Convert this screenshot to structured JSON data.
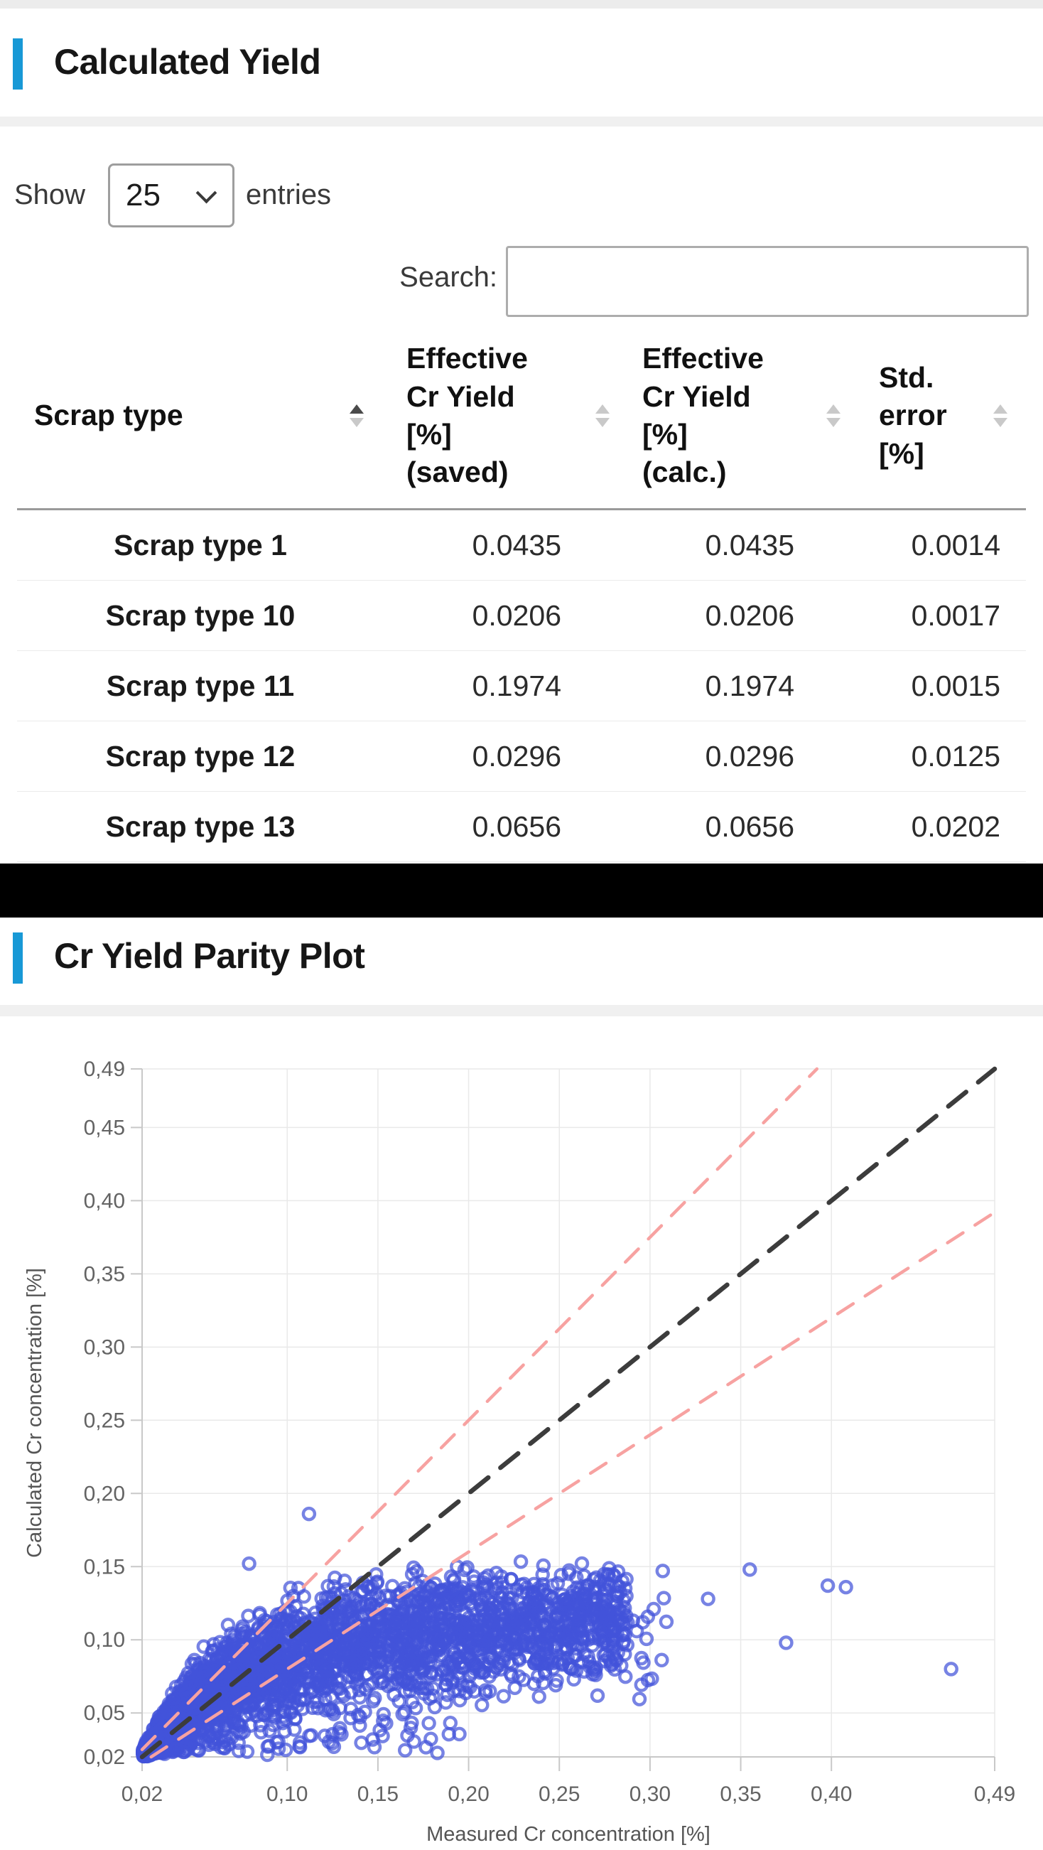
{
  "page": {
    "background": "#ffffff",
    "top_strip_color": "#ececec",
    "accent_color": "#1899d6",
    "redaction_band_color": "#000000"
  },
  "section1": {
    "title": "Calculated Yield"
  },
  "controls": {
    "show_label": "Show",
    "page_size_value": "25",
    "entries_label": "entries",
    "search_label": "Search:",
    "search_value": ""
  },
  "table": {
    "columns": [
      {
        "label": "Scrap type",
        "sort_state": "ascending"
      },
      {
        "label": "Effective\nCr Yield\n[%]\n(saved)",
        "sort_state": "none"
      },
      {
        "label": "Effective\nCr Yield\n[%]\n(calc.)",
        "sort_state": "none"
      },
      {
        "label": "Std.\nerror\n[%]",
        "sort_state": "none"
      }
    ],
    "rows": [
      {
        "scrap_type": "Scrap type 1",
        "saved": "0.0435",
        "calc": "0.0435",
        "std_error": "0.0014"
      },
      {
        "scrap_type": "Scrap type 10",
        "saved": "0.0206",
        "calc": "0.0206",
        "std_error": "0.0017"
      },
      {
        "scrap_type": "Scrap type 11",
        "saved": "0.1974",
        "calc": "0.1974",
        "std_error": "0.0015"
      },
      {
        "scrap_type": "Scrap type 12",
        "saved": "0.0296",
        "calc": "0.0296",
        "std_error": "0.0125"
      },
      {
        "scrap_type": "Scrap type 13",
        "saved": "0.0656",
        "calc": "0.0656",
        "std_error": "0.0202"
      }
    ]
  },
  "section2": {
    "title": "Cr Yield Parity Plot"
  },
  "chart_data": {
    "type": "scatter",
    "title": "",
    "xlabel": "Measured Cr concentration [%]",
    "ylabel": "Calculated Cr concentration [%]",
    "xlim": [
      0.02,
      0.49
    ],
    "ylim": [
      0.02,
      0.49
    ],
    "grid": true,
    "legend": "none",
    "tick_format": "comma-decimal",
    "x_ticks": [
      [
        0.02,
        "0,02"
      ],
      [
        0.1,
        "0,10"
      ],
      [
        0.15,
        "0,15"
      ],
      [
        0.2,
        "0,20"
      ],
      [
        0.25,
        "0,25"
      ],
      [
        0.3,
        "0,30"
      ],
      [
        0.35,
        "0,35"
      ],
      [
        0.4,
        "0,40"
      ],
      [
        0.49,
        "0,49"
      ]
    ],
    "y_ticks": [
      [
        0.02,
        "0,02"
      ],
      [
        0.05,
        "0,05"
      ],
      [
        0.1,
        "0,10"
      ],
      [
        0.15,
        "0,15"
      ],
      [
        0.2,
        "0,20"
      ],
      [
        0.25,
        "0,25"
      ],
      [
        0.3,
        "0,30"
      ],
      [
        0.35,
        "0,35"
      ],
      [
        0.4,
        "0,40"
      ],
      [
        0.45,
        "0,45"
      ],
      [
        0.49,
        "0,49"
      ]
    ],
    "reference_lines": [
      {
        "name": "identity",
        "equation": "y = x",
        "from": [
          0.02,
          0.02
        ],
        "to": [
          0.49,
          0.49
        ],
        "style": "dashed",
        "color": "#3c3c3c",
        "width": 6.5,
        "dash": "32 22"
      },
      {
        "name": "upper-band",
        "equation": "y = 1.25x",
        "from": [
          0.02,
          0.025
        ],
        "to": [
          0.392,
          0.49
        ],
        "style": "dashed",
        "color": "#f7a2a1",
        "width": 4.5,
        "dash": "26 20"
      },
      {
        "name": "lower-band",
        "equation": "y = 0.8x",
        "from": [
          0.025,
          0.02
        ],
        "to": [
          0.49,
          0.392
        ],
        "style": "dashed",
        "color": "#f7a2a1",
        "width": 4.5,
        "dash": "26 20"
      }
    ],
    "scatter": {
      "marker": "open-circle",
      "marker_radius": 8,
      "marker_stroke_width": 4.5,
      "color": "#4353d9",
      "opacity": 0.72,
      "n_points_approx": 3230,
      "cluster_model": {
        "comment": "dense wedge: x 0.02-0.29, top envelope saturates near y=0.155, generated deterministically",
        "seed": 42,
        "n_core": 3000,
        "x_span": 0.265,
        "x_pow": 2.0,
        "top_amp": 0.135,
        "top_tau": 0.042,
        "bot_slope": 0.21,
        "n_tail": 140,
        "n_low": 90
      },
      "outliers": [
        [
          0.112,
          0.186
        ],
        [
          0.079,
          0.152
        ],
        [
          0.307,
          0.147
        ],
        [
          0.355,
          0.148
        ],
        [
          0.398,
          0.137
        ],
        [
          0.408,
          0.136
        ],
        [
          0.332,
          0.128
        ],
        [
          0.302,
          0.121
        ],
        [
          0.296,
          0.112
        ],
        [
          0.375,
          0.098
        ],
        [
          0.466,
          0.08
        ],
        [
          0.258,
          0.073
        ],
        [
          0.248,
          0.069
        ]
      ]
    }
  }
}
